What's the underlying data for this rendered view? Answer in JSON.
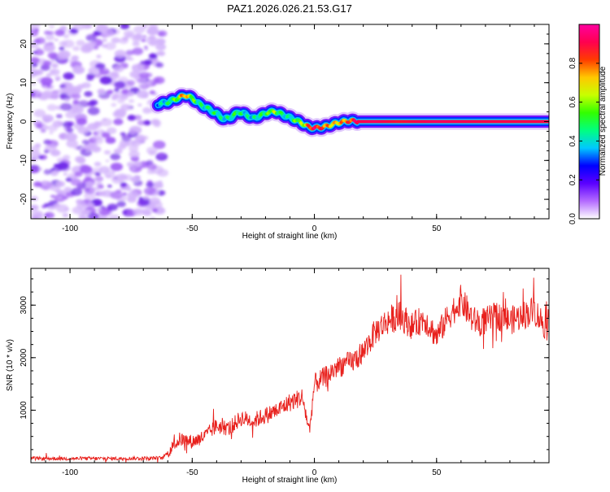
{
  "title": "PAZ1.2026.026.21.53.G17",
  "chart_data": [
    {
      "type": "heatmap",
      "title": "PAZ1.2026.026.21.53.G17",
      "xlabel": "Height of straight line (km)",
      "ylabel": "Frequency (Hz)",
      "xlim": [
        -116,
        96
      ],
      "ylim": [
        -25,
        25
      ],
      "xticks": [
        -100,
        -50,
        0,
        50
      ],
      "yticks": [
        -20,
        -10,
        0,
        10,
        20
      ],
      "colorbar": {
        "label": "Normalized spectral amplitude",
        "range": [
          0,
          1
        ],
        "ticks": [
          0.0,
          0.2,
          0.4,
          0.6,
          0.8
        ],
        "tick_labels": [
          "0.0",
          "0.2",
          "0.4",
          "0.6",
          "0.8"
        ],
        "colors": [
          "#ffffff",
          "#b46bff",
          "#5b00ff",
          "#0000ff",
          "#00c8ff",
          "#00ff80",
          "#32ff00",
          "#c8ff00",
          "#ffc800",
          "#ff3c00",
          "#ff0050",
          "#ff00a0"
        ]
      },
      "noise_region": {
        "x": [
          -116,
          -62
        ],
        "amplitude": 0.12
      },
      "ridge": {
        "x": [
          -64,
          -60,
          -56,
          -53,
          -50,
          -47,
          -44,
          -40,
          -37,
          -34,
          -31,
          -28,
          -25,
          -22,
          -19,
          -16,
          -13,
          -10,
          -7,
          -4,
          -2,
          0,
          3,
          6,
          9,
          12,
          15,
          18,
          25,
          35,
          50,
          70,
          96
        ],
        "frequency": [
          4.5,
          5.0,
          6.0,
          6.8,
          6.0,
          4.5,
          3.5,
          2.0,
          0.6,
          1.2,
          2.5,
          1.8,
          0.8,
          1.6,
          2.4,
          2.6,
          1.8,
          1.0,
          0.2,
          -0.8,
          -1.5,
          -1.6,
          -1.5,
          -1.0,
          -0.4,
          0.0,
          0.2,
          0.0,
          0.0,
          0.0,
          0.0,
          0.0,
          0.0
        ],
        "amplitude": [
          0.35,
          0.42,
          0.55,
          0.8,
          0.6,
          0.45,
          0.42,
          0.48,
          0.4,
          0.45,
          0.5,
          0.42,
          0.4,
          0.46,
          0.5,
          0.62,
          0.45,
          0.4,
          0.55,
          0.6,
          0.8,
          0.9,
          0.85,
          0.75,
          0.7,
          0.75,
          0.82,
          0.9,
          0.92,
          0.88,
          0.92,
          0.9,
          0.9
        ]
      }
    },
    {
      "type": "line",
      "xlabel": "Height of straight line (km)",
      "ylabel": "SNR (10 * v/v)",
      "xlim": [
        -116,
        96
      ],
      "ylim": [
        0,
        3700
      ],
      "xticks": [
        -100,
        -50,
        0,
        50
      ],
      "yticks": [
        1000,
        2000,
        3000
      ],
      "color": "#e8201c",
      "series": [
        {
          "x": [
            -116,
            -100,
            -80,
            -70,
            -62,
            -58,
            -55,
            -50,
            -45,
            -40,
            -35,
            -30,
            -25,
            -20,
            -15,
            -10,
            -5,
            -2,
            0,
            5,
            10,
            15,
            20,
            25,
            30,
            35,
            40,
            45,
            50,
            55,
            60,
            65,
            70,
            75,
            80,
            85,
            90,
            96
          ],
          "values": [
            80,
            80,
            80,
            85,
            90,
            300,
            450,
            400,
            500,
            700,
            650,
            850,
            800,
            900,
            1000,
            1150,
            1250,
            600,
            1500,
            1650,
            1850,
            1900,
            2100,
            2500,
            2700,
            2800,
            2600,
            2750,
            2400,
            2800,
            3100,
            2700,
            2700,
            2800,
            2700,
            2800,
            2900,
            2500
          ]
        }
      ]
    }
  ]
}
